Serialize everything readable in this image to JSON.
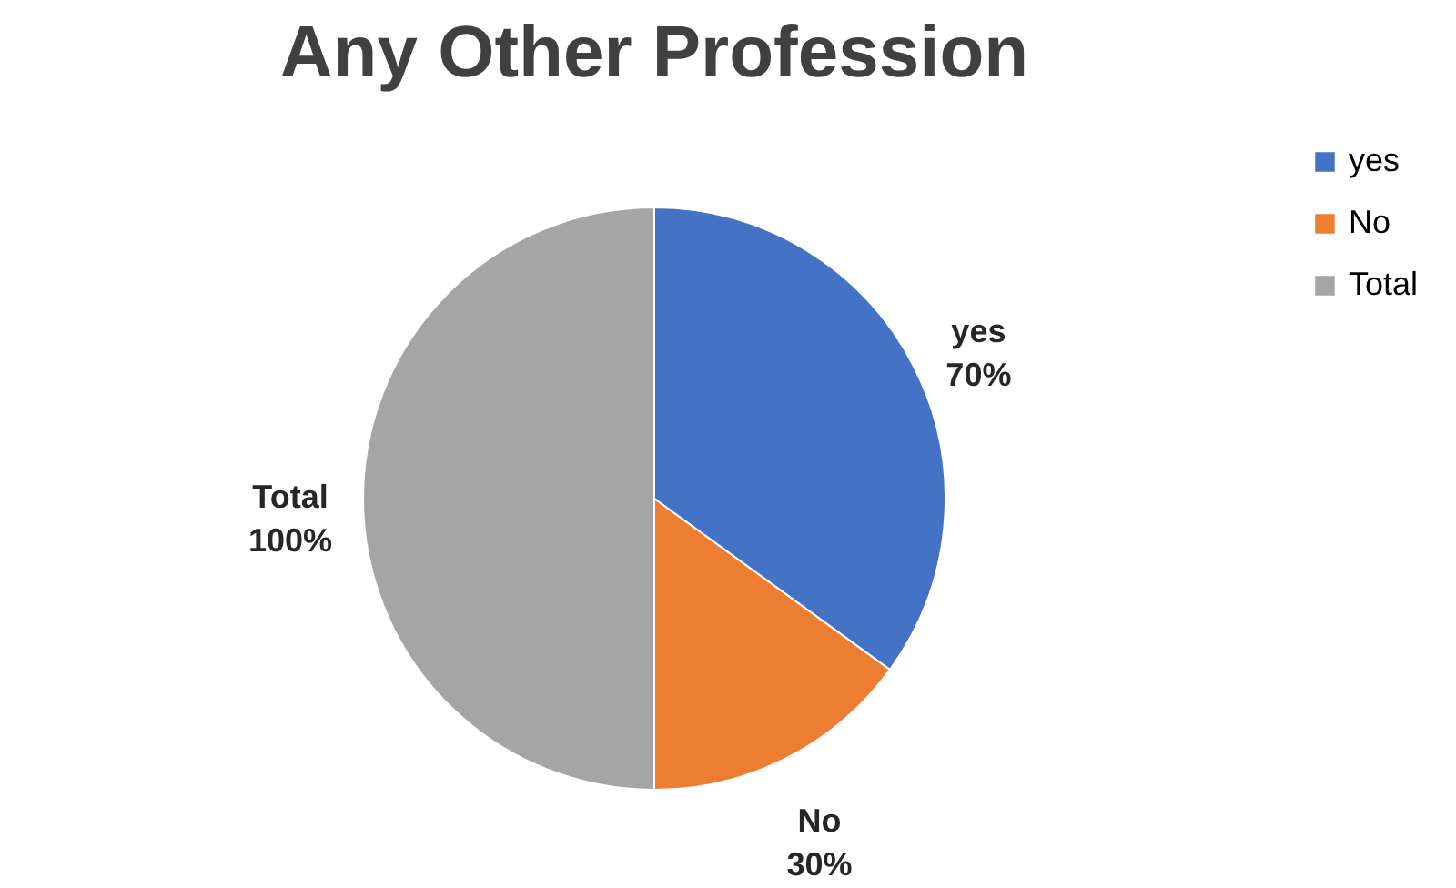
{
  "chart_data": {
    "type": "pie",
    "title": "Any Other Profession",
    "categories": [
      "yes",
      "No",
      "Total"
    ],
    "values": [
      70,
      30,
      100
    ],
    "colors": [
      "#4472c4",
      "#ed7d31",
      "#a5a5a5"
    ],
    "value_labels": [
      "70%",
      "30%",
      "100%"
    ],
    "legend": "right"
  }
}
